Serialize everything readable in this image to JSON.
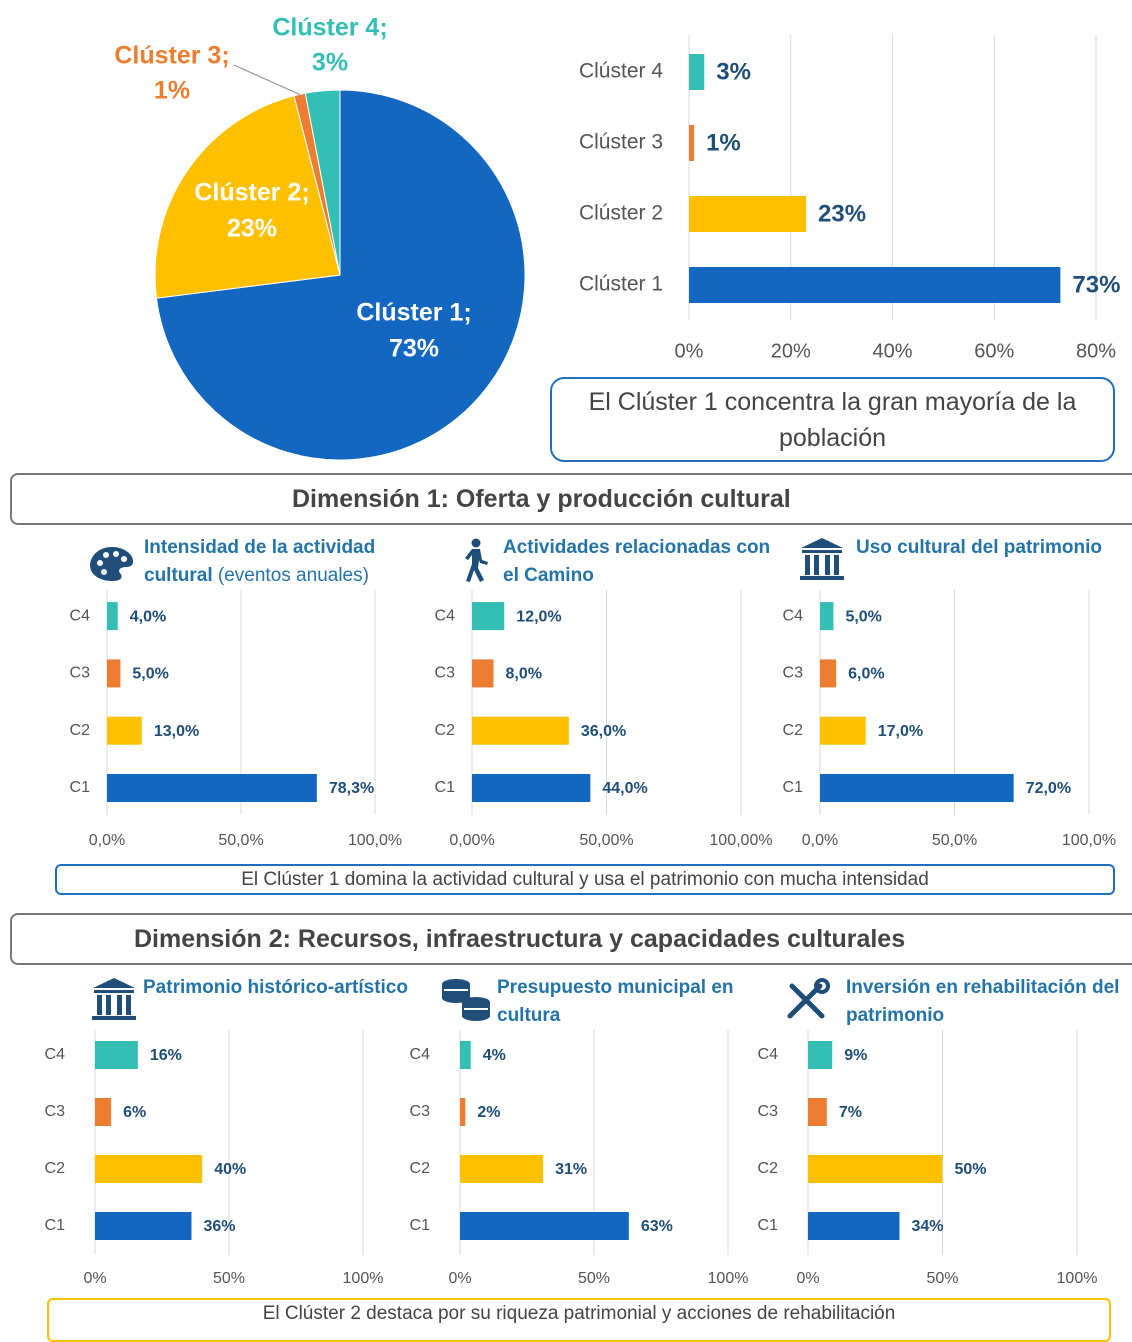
{
  "chart_data": [
    {
      "type": "pie",
      "categories": [
        "Clúster 1;",
        "Clúster 2;",
        "Clúster 3;",
        "Clúster 4;"
      ],
      "values": [
        73,
        23,
        1,
        3
      ],
      "value_labels": [
        "73%",
        "23%",
        "1%",
        "3%"
      ],
      "colors": [
        "#1467c0",
        "#ffc000",
        "#ed7d31",
        "#34bfb4"
      ]
    },
    {
      "type": "bar",
      "categories": [
        "Clúster 1",
        "Clúster 2",
        "Clúster 3",
        "Clúster 4"
      ],
      "values": [
        73,
        23,
        1,
        3
      ],
      "value_labels": [
        "73%",
        "23%",
        "1%",
        "3%"
      ],
      "colors": [
        "#1467c0",
        "#ffc000",
        "#ed7d31",
        "#34bfb4"
      ],
      "xlim": [
        0,
        80
      ],
      "xticks": [
        {
          "value": 0,
          "label": "0%"
        },
        {
          "value": 20,
          "label": "20%"
        },
        {
          "value": 40,
          "label": "40%"
        },
        {
          "value": 60,
          "label": "60%"
        },
        {
          "value": 80,
          "label": "80%"
        }
      ],
      "grid": true
    },
    {
      "type": "bar",
      "title": "Intensidad de la actividad cultural",
      "subtitle": "(eventos anuales)",
      "categories": [
        "C1",
        "C2",
        "C3",
        "C4"
      ],
      "values": [
        78.3,
        13,
        5,
        4
      ],
      "value_labels": [
        "78,3%",
        "13,0%",
        "5,0%",
        "4,0%"
      ],
      "colors": [
        "#1467c0",
        "#ffc000",
        "#ed7d31",
        "#34bfb4"
      ],
      "xlim": [
        0,
        100
      ],
      "xticks": [
        {
          "value": 0,
          "label": "0,0%"
        },
        {
          "value": 50,
          "label": "50,0%"
        },
        {
          "value": 100,
          "label": "100,0%"
        }
      ],
      "grid": true
    },
    {
      "type": "bar",
      "title": "Actividades relacionadas con el Camino",
      "categories": [
        "C1",
        "C2",
        "C3",
        "C4"
      ],
      "values": [
        44,
        36,
        8,
        12
      ],
      "value_labels": [
        "44,0%",
        "36,0%",
        "8,0%",
        "12,0%"
      ],
      "colors": [
        "#1467c0",
        "#ffc000",
        "#ed7d31",
        "#34bfb4"
      ],
      "xlim": [
        0,
        100
      ],
      "xticks": [
        {
          "value": 0,
          "label": "0,00%"
        },
        {
          "value": 50,
          "label": "50,00%"
        },
        {
          "value": 100,
          "label": "100,00%"
        }
      ],
      "grid": true
    },
    {
      "type": "bar",
      "title": "Uso cultural del patrimonio",
      "categories": [
        "C1",
        "C2",
        "C3",
        "C4"
      ],
      "values": [
        72,
        17,
        6,
        5
      ],
      "value_labels": [
        "72,0%",
        "17,0%",
        "6,0%",
        "5,0%"
      ],
      "colors": [
        "#1467c0",
        "#ffc000",
        "#ed7d31",
        "#34bfb4"
      ],
      "xlim": [
        0,
        100
      ],
      "xticks": [
        {
          "value": 0,
          "label": "0,0%"
        },
        {
          "value": 50,
          "label": "50,0%"
        },
        {
          "value": 100,
          "label": "100,0%"
        }
      ],
      "grid": true
    },
    {
      "type": "bar",
      "title": "Patrimonio histórico-artístico",
      "categories": [
        "C1",
        "C2",
        "C3",
        "C4"
      ],
      "values": [
        36,
        40,
        6,
        16
      ],
      "value_labels": [
        "36%",
        "40%",
        "6%",
        "16%"
      ],
      "colors": [
        "#1467c0",
        "#ffc000",
        "#ed7d31",
        "#34bfb4"
      ],
      "xlim": [
        0,
        100
      ],
      "xticks": [
        {
          "value": 0,
          "label": "0%"
        },
        {
          "value": 50,
          "label": "50%"
        },
        {
          "value": 100,
          "label": "100%"
        }
      ],
      "grid": true
    },
    {
      "type": "bar",
      "title": "Presupuesto municipal en cultura",
      "categories": [
        "C1",
        "C2",
        "C3",
        "C4"
      ],
      "values": [
        63,
        31,
        2,
        4
      ],
      "value_labels": [
        "63%",
        "31%",
        "2%",
        "4%"
      ],
      "colors": [
        "#1467c0",
        "#ffc000",
        "#ed7d31",
        "#34bfb4"
      ],
      "xlim": [
        0,
        100
      ],
      "xticks": [
        {
          "value": 0,
          "label": "0%"
        },
        {
          "value": 50,
          "label": "50%"
        },
        {
          "value": 100,
          "label": "100%"
        }
      ],
      "grid": true
    },
    {
      "type": "bar",
      "title": "Inversión en rehabilitación del patrimonio",
      "categories": [
        "C1",
        "C2",
        "C3",
        "C4"
      ],
      "values": [
        34,
        50,
        7,
        9
      ],
      "value_labels": [
        "34%",
        "50%",
        "7%",
        "9%"
      ],
      "colors": [
        "#1467c0",
        "#ffc000",
        "#ed7d31",
        "#34bfb4"
      ],
      "xlim": [
        0,
        100
      ],
      "xticks": [
        {
          "value": 0,
          "label": "0%"
        },
        {
          "value": 50,
          "label": "50%"
        },
        {
          "value": 100,
          "label": "100%"
        }
      ],
      "grid": true
    }
  ],
  "summary_1": "El Clúster 1 concentra la gran mayoría de la población",
  "dimension_1": "Dimensión 1: Oferta y producción cultural",
  "summary_2": "El Clúster 1 domina la actividad cultural y usa el patrimonio con mucha intensidad",
  "dimension_2": "Dimensión 2: Recursos, infraestructura y capacidades culturales",
  "summary_3": "El Clúster 2 destaca por su riqueza patrimonial y acciones de rehabilitación"
}
